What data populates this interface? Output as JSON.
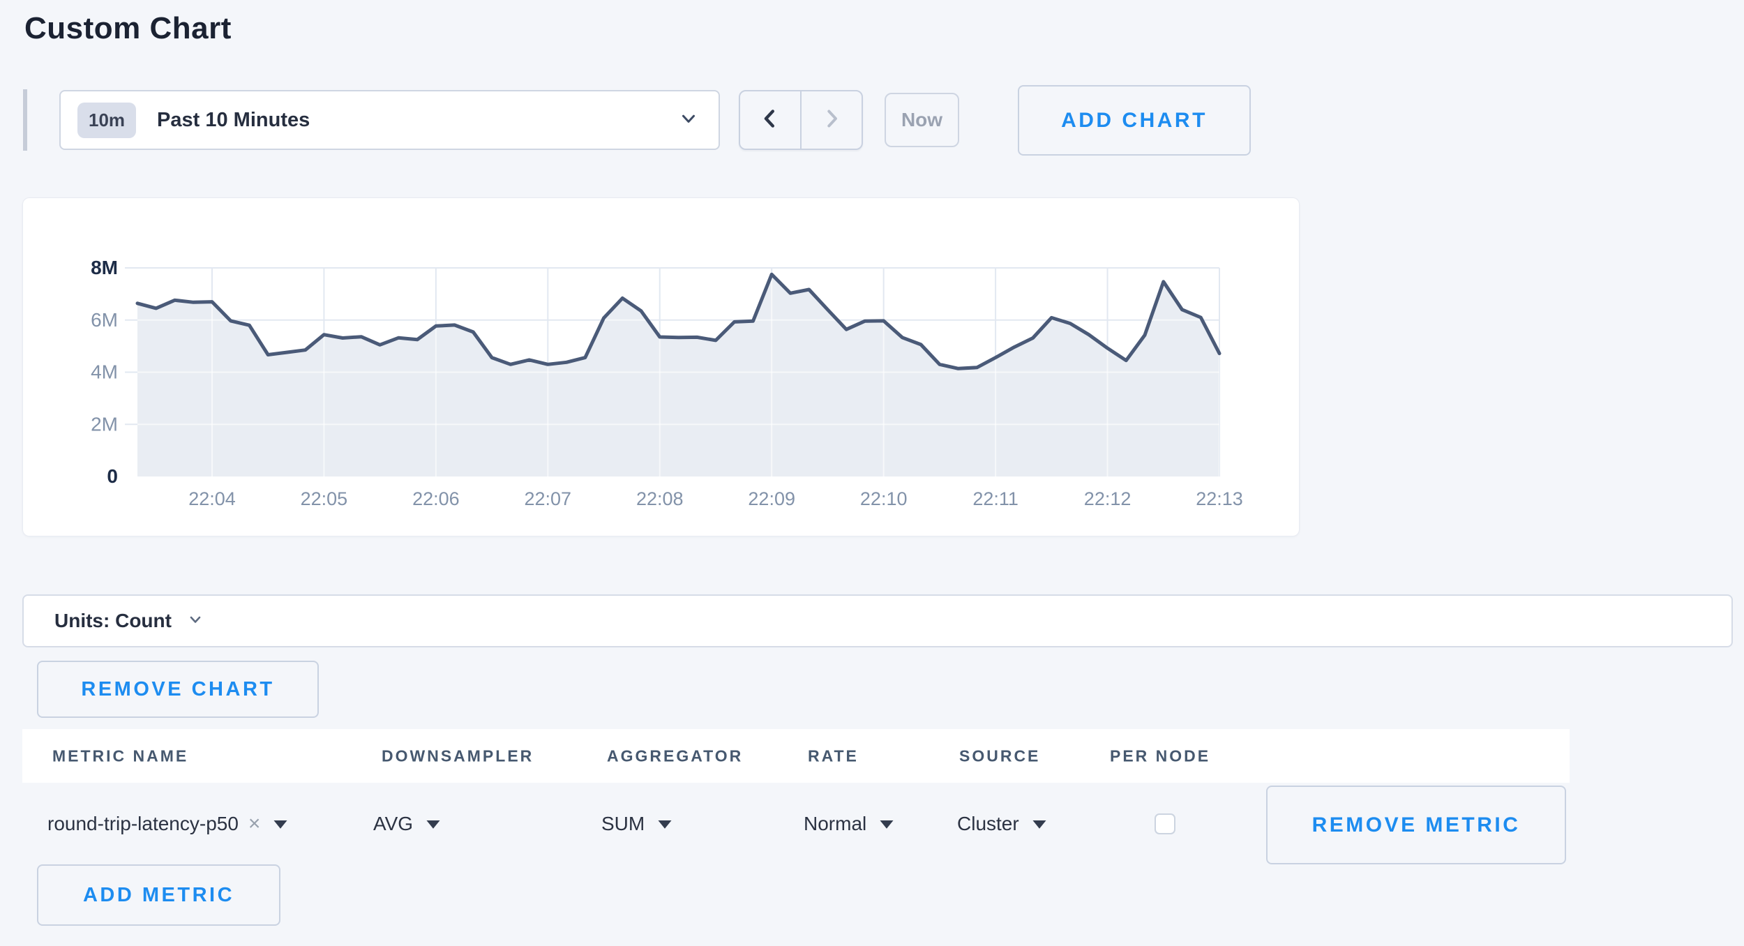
{
  "page": {
    "title": "Custom Chart"
  },
  "toolbar": {
    "time_window_badge": "10m",
    "time_window_label": "Past 10 Minutes",
    "now_label": "Now",
    "add_chart_label": "ADD CHART"
  },
  "chart_data": {
    "type": "area",
    "series": [
      {
        "name": "round-trip-latency-p50",
        "x_start": "22:03:20",
        "interval_seconds": 10,
        "values_millions": [
          6.64,
          6.45,
          6.76,
          6.68,
          6.7,
          5.97,
          5.8,
          4.67,
          4.76,
          4.85,
          5.44,
          5.31,
          5.36,
          5.05,
          5.32,
          5.25,
          5.77,
          5.81,
          5.54,
          4.56,
          4.3,
          4.47,
          4.3,
          4.38,
          4.56,
          6.08,
          6.84,
          6.35,
          5.35,
          5.33,
          5.34,
          5.22,
          5.93,
          5.96,
          7.75,
          7.03,
          7.17,
          6.4,
          5.64,
          5.96,
          5.97,
          5.33,
          5.06,
          4.3,
          4.14,
          4.18,
          4.56,
          4.96,
          5.31,
          6.09,
          5.87,
          5.44,
          4.92,
          4.45,
          5.42,
          7.47,
          6.4,
          6.1,
          4.72
        ]
      }
    ],
    "title": "",
    "xlabel": "",
    "ylabel": "Count",
    "ylim_millions": [
      0,
      8
    ],
    "y_tick_labels": [
      "8M",
      "6M",
      "4M",
      "2M",
      "0"
    ],
    "x_tick_labels": [
      "22:04",
      "22:05",
      "22:06",
      "22:07",
      "22:08",
      "22:09",
      "22:10",
      "22:11",
      "22:12",
      "22:13"
    ],
    "grid": true,
    "legend_position": "none"
  },
  "units_bar": {
    "label": "Units: Count"
  },
  "chart_actions": {
    "remove_chart_label": "REMOVE CHART"
  },
  "metrics_table": {
    "headers": [
      "METRIC NAME",
      "DOWNSAMPLER",
      "AGGREGATOR",
      "RATE",
      "SOURCE",
      "PER NODE"
    ],
    "rows": [
      {
        "metric_name": "round-trip-latency-p50",
        "downsampler": "AVG",
        "aggregator": "SUM",
        "rate": "Normal",
        "source": "Cluster",
        "per_node_checked": false,
        "remove_label": "REMOVE METRIC"
      }
    ],
    "add_metric_label": "ADD METRIC"
  },
  "colors": {
    "accent_blue": "#1d8cf0",
    "line": "#4a5a78",
    "area_fill": "#e9edf3",
    "grid_line": "#e2e8f1",
    "axis_text_gray": "#8292a9",
    "axis_text_dark": "#1d2c47",
    "page_background": "#f4f6fa"
  }
}
